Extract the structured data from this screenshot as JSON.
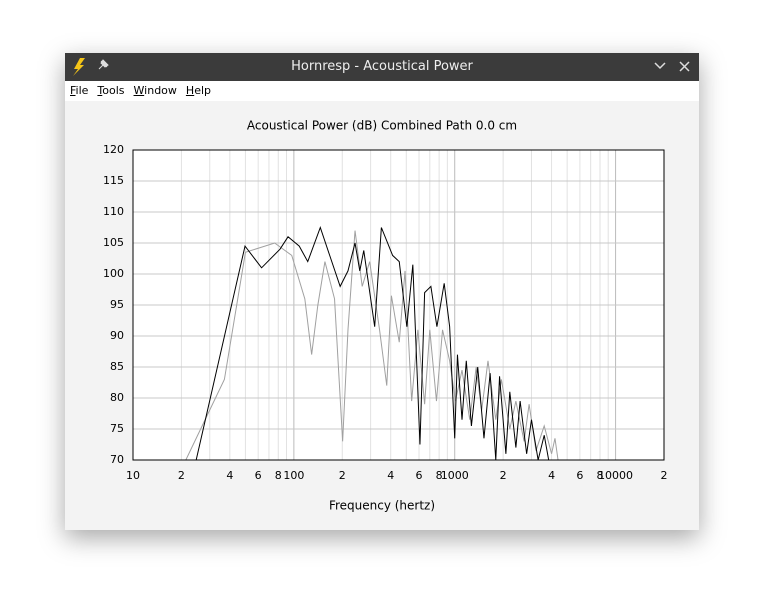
{
  "window": {
    "title": "Hornresp - Acoustical Power"
  },
  "menu": [
    "File",
    "Tools",
    "Window",
    "Help"
  ],
  "chart_data": {
    "type": "line",
    "title": "Acoustical Power (dB)   Combined   Path 0.0 cm",
    "xlabel": "Frequency (hertz)",
    "xscale": "log",
    "grid": true,
    "xlim": [
      10,
      20000
    ],
    "ylim": [
      70,
      120
    ],
    "xticks": [
      10,
      {
        "value": 20,
        "label": "2"
      },
      {
        "value": 40,
        "label": "4"
      },
      {
        "value": 60,
        "label": "6"
      },
      {
        "value": 80,
        "label": "8"
      },
      100,
      {
        "value": 200,
        "label": "2"
      },
      {
        "value": 400,
        "label": "4"
      },
      {
        "value": 600,
        "label": "6"
      },
      {
        "value": 800,
        "label": "8"
      },
      1000,
      {
        "value": 2000,
        "label": "2"
      },
      {
        "value": 4000,
        "label": "4"
      },
      {
        "value": 6000,
        "label": "6"
      },
      {
        "value": 8000,
        "label": "8"
      },
      10000,
      {
        "value": 20000,
        "label": "2"
      }
    ],
    "x_minor_gridlines": [
      30,
      50,
      70,
      90,
      300,
      500,
      700,
      900,
      3000,
      5000,
      7000,
      9000
    ],
    "yticks": [
      70,
      75,
      80,
      85,
      90,
      95,
      100,
      105,
      110,
      115,
      120
    ],
    "series": [
      {
        "color": "#a0a0a0",
        "x": [
          21.3,
          37,
          50,
          76,
          97,
          117,
          129,
          141,
          156,
          179,
          201,
          217,
          240,
          266,
          296,
          341,
          378,
          404,
          452,
          491,
          540,
          590,
          650,
          700,
          770,
          840,
          930,
          1010,
          1110,
          1240,
          1360,
          1470,
          1610,
          1800,
          1950,
          2200,
          2400,
          2700,
          2900,
          3200,
          3600,
          4000,
          4200,
          4500
        ],
        "values": [
          70,
          83,
          103.5,
          105,
          103,
          96,
          87,
          95,
          102,
          96,
          73,
          91,
          107,
          98,
          102,
          91,
          82,
          96.5,
          89,
          100.5,
          79.5,
          91,
          79,
          91,
          79.5,
          91,
          86,
          79.5,
          84.5,
          76.5,
          85,
          78,
          86,
          76.5,
          83,
          75,
          79.5,
          73,
          79,
          71.5,
          75.5,
          71,
          73.5,
          68
        ]
      },
      {
        "color": "#000000",
        "x": [
          24.7,
          49.7,
          63,
          82,
          92,
          108,
          122,
          146,
          167,
          194,
          217,
          240,
          257,
          272,
          318,
          350,
          411,
          452,
          504,
          549,
          608,
          650,
          711,
          775,
          860,
          930,
          1000,
          1040,
          1110,
          1180,
          1270,
          1390,
          1520,
          1660,
          1800,
          1900,
          2080,
          2200,
          2400,
          2550,
          2800,
          3000,
          3300,
          3600,
          3900
        ],
        "values": [
          70,
          104.5,
          101,
          104,
          106,
          104.5,
          102,
          107.5,
          103,
          98,
          100.5,
          105,
          100.5,
          103.8,
          91.5,
          107.5,
          103,
          102,
          91.5,
          101.5,
          72.5,
          97,
          98,
          91.5,
          98.5,
          91.5,
          73.5,
          87,
          76.5,
          86,
          75.5,
          85,
          73.5,
          84,
          70,
          83.5,
          71,
          81,
          72,
          79.5,
          71,
          76.5,
          70,
          74,
          69
        ]
      }
    ]
  }
}
